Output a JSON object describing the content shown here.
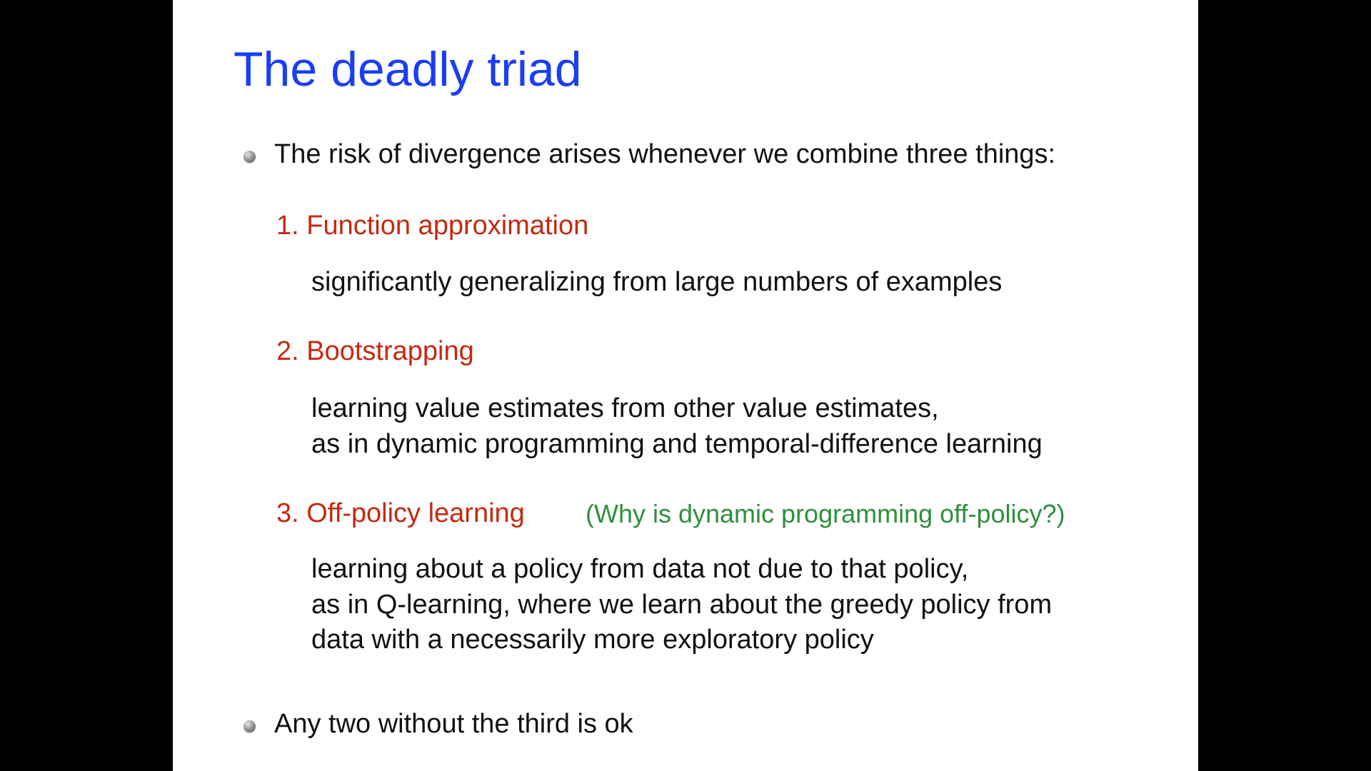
{
  "slide": {
    "title": "The deadly triad",
    "bullet1": "The risk of divergence arises whenever we combine three things:",
    "items": [
      {
        "label": "1. Function approximation",
        "body": [
          "significantly generalizing from large numbers of examples"
        ]
      },
      {
        "label": "2. Bootstrapping",
        "body": [
          "learning value estimates from other value estimates,",
          "as in dynamic programming and temporal-difference learning"
        ]
      },
      {
        "label": "3. Off-policy learning",
        "note": "(Why is dynamic programming off-policy?)",
        "body": [
          "learning about a policy from data not due to that policy,",
          "as in Q-learning, where we learn about the greedy policy from",
          "data with a necessarily more exploratory policy"
        ]
      }
    ],
    "bullet2": "Any two without the third is ok"
  },
  "colors": {
    "background": "#000000",
    "slide": "#ffffff",
    "title": "#1a3ef5",
    "item_label": "#c42a10",
    "note": "#2e8f3a",
    "text": "#111111"
  }
}
